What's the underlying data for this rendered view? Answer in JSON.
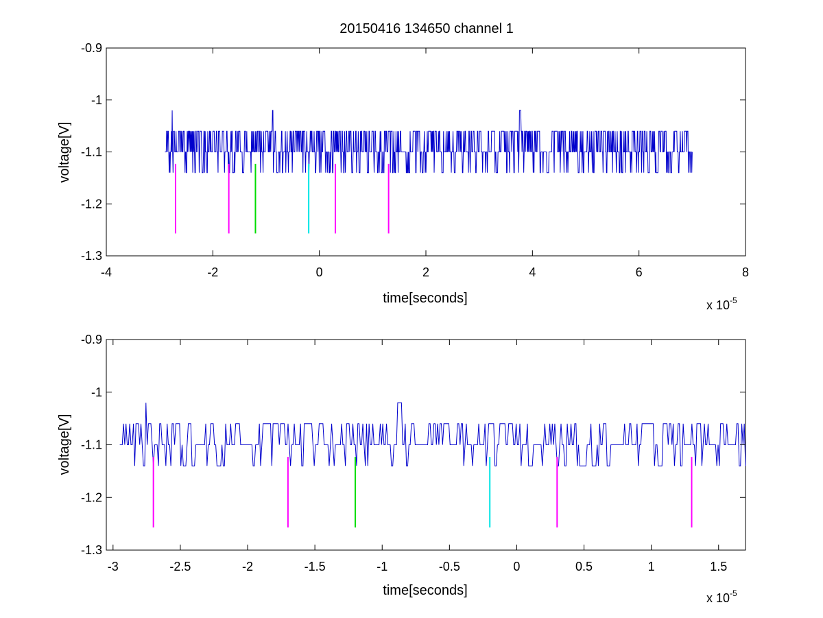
{
  "chart_data": [
    {
      "type": "line",
      "title": "20150416 134650 channel 1",
      "xlabel": "time[seconds]",
      "ylabel": "voltage[V]",
      "x_exponent_label": {
        "base": "x 10",
        "power": "-5"
      },
      "xlim": [
        -4,
        8
      ],
      "ylim": [
        -1.3,
        -0.9
      ],
      "x_ticks": [
        -4,
        -2,
        0,
        2,
        4,
        6,
        8
      ],
      "x_tick_labels": [
        "-4",
        "-2",
        "0",
        "2",
        "4",
        "6",
        "8"
      ],
      "y_ticks": [
        -0.9,
        -1,
        -1.1,
        -1.2,
        -1.3
      ],
      "y_tick_labels": [
        "-0.9",
        "-1",
        "-1.1",
        "-1.2",
        "-1.3"
      ],
      "grid": false,
      "series": [
        {
          "color": "#0000cc",
          "x_range": [
            -2.9,
            7.0
          ],
          "baseline": -1.1,
          "levels": [
            -1.02,
            -1.06,
            -1.1,
            -1.14
          ],
          "x": [
            -2.9,
            -2.84,
            -2.82,
            -2.81,
            -2.78,
            -2.76,
            -2.72,
            -2.68,
            -2.52,
            -1.9,
            -1.28,
            -1.15,
            -0.88,
            -0.8,
            -0.55,
            -0.3,
            0.0,
            0.3,
            0.7,
            1.3,
            2.0,
            2.6,
            3.3,
            3.76,
            4.2,
            4.9,
            5.5,
            6.2,
            6.6,
            7.0
          ],
          "y": [
            -1.1,
            -1.06,
            -1.14,
            -1.1,
            -1.06,
            -1.02,
            -1.06,
            -1.1,
            -1.14,
            -1.14,
            -1.14,
            -1.06,
            -1.02,
            -1.14,
            -1.06,
            -1.06,
            -1.14,
            -1.06,
            -1.14,
            -1.06,
            -1.14,
            -1.06,
            -1.14,
            -1.02,
            -1.14,
            -1.06,
            -1.14,
            -1.06,
            -1.14,
            -1.1
          ]
        }
      ],
      "markers": {
        "y_range": [
          -1.123,
          -1.257
        ],
        "lines": [
          {
            "x": -2.7,
            "color": "#ff00ff"
          },
          {
            "x": -1.7,
            "color": "#ff00ff"
          },
          {
            "x": -1.2,
            "color": "#00dd00"
          },
          {
            "x": -0.2,
            "color": "#00e5e5"
          },
          {
            "x": 0.3,
            "color": "#ff00ff"
          },
          {
            "x": 1.3,
            "color": "#ff00ff"
          }
        ]
      }
    },
    {
      "type": "line",
      "xlabel": "time[seconds]",
      "ylabel": "voltage[V]",
      "x_exponent_label": {
        "base": "x 10",
        "power": "-5"
      },
      "xlim": [
        -3.05,
        1.7
      ],
      "ylim": [
        -1.3,
        -0.9
      ],
      "x_ticks": [
        -3,
        -2.5,
        -2,
        -1.5,
        -1,
        -0.5,
        0,
        0.5,
        1,
        1.5
      ],
      "x_tick_labels": [
        "-3",
        "-2.5",
        "-2",
        "-1.5",
        "-1",
        "-0.5",
        "0",
        "0.5",
        "1",
        "1.5"
      ],
      "y_ticks": [
        -0.9,
        -1,
        -1.1,
        -1.2,
        -1.3
      ],
      "y_tick_labels": [
        "-0.9",
        "-1",
        "-1.1",
        "-1.2",
        "-1.3"
      ],
      "grid": false,
      "series": [
        {
          "color": "#0000cc",
          "x_range": [
            -2.95,
            1.7
          ],
          "baseline": -1.1,
          "levels": [
            -1.02,
            -1.06,
            -1.1,
            -1.14
          ],
          "x": [
            -2.95,
            -2.9,
            -2.87,
            -2.84,
            -2.8,
            -2.76,
            -2.72,
            -2.6,
            -2.5,
            -1.9,
            -1.6,
            -1.26,
            -1.0,
            -0.88,
            -0.82,
            -0.62,
            -0.2,
            0.09,
            0.4,
            0.9,
            1.3,
            1.7
          ],
          "y": [
            -1.1,
            -1.06,
            -1.1,
            -1.14,
            -1.1,
            -1.02,
            -1.06,
            -1.06,
            -1.14,
            -1.14,
            -1.14,
            -1.06,
            -1.06,
            -1.02,
            -1.14,
            -1.06,
            -1.06,
            -1.14,
            -1.06,
            -1.14,
            -1.06,
            -1.14
          ]
        }
      ],
      "markers": {
        "y_range": [
          -1.123,
          -1.257
        ],
        "lines": [
          {
            "x": -2.7,
            "color": "#ff00ff"
          },
          {
            "x": -1.7,
            "color": "#ff00ff"
          },
          {
            "x": -1.2,
            "color": "#00dd00"
          },
          {
            "x": -0.2,
            "color": "#00e5e5"
          },
          {
            "x": 0.3,
            "color": "#ff00ff"
          },
          {
            "x": 1.3,
            "color": "#ff00ff"
          }
        ]
      }
    }
  ]
}
